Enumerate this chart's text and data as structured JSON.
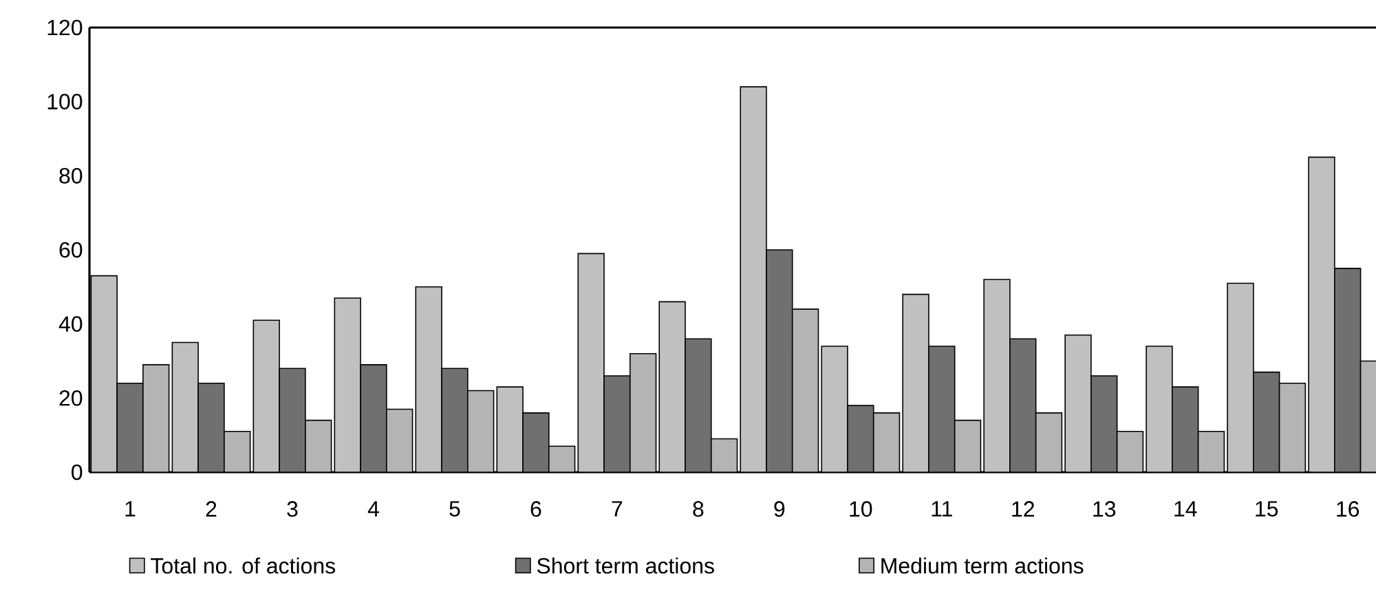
{
  "chart_data": {
    "type": "bar",
    "categories": [
      "1",
      "2",
      "3",
      "4",
      "5",
      "6",
      "7",
      "8",
      "9",
      "10",
      "11",
      "12",
      "13",
      "14",
      "15",
      "16"
    ],
    "series": [
      {
        "name": "Total no. of actions",
        "color": "#c0c0c0",
        "values": [
          53,
          35,
          41,
          47,
          50,
          23,
          59,
          46,
          104,
          34,
          48,
          52,
          37,
          34,
          51,
          85
        ]
      },
      {
        "name": "Short term actions",
        "color": "#707070",
        "values": [
          24,
          24,
          28,
          29,
          28,
          16,
          26,
          36,
          60,
          18,
          34,
          36,
          26,
          23,
          27,
          55
        ]
      },
      {
        "name": "Medium term actions",
        "color": "#b4b4b4",
        "values": [
          29,
          11,
          14,
          17,
          22,
          7,
          32,
          9,
          44,
          16,
          14,
          16,
          11,
          11,
          24,
          30
        ]
      }
    ],
    "ylim": [
      0,
      120
    ],
    "yticks": [
      0,
      20,
      40,
      60,
      80,
      100,
      120
    ],
    "grid": false,
    "legend": "bottom"
  }
}
